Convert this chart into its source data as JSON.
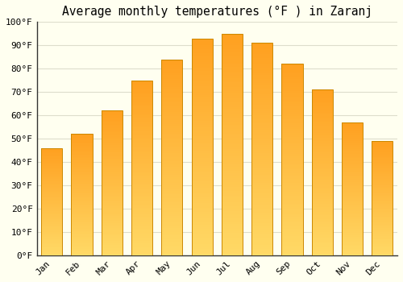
{
  "title": "Average monthly temperatures (°F ) in Zaranj",
  "months": [
    "Jan",
    "Feb",
    "Mar",
    "Apr",
    "May",
    "Jun",
    "Jul",
    "Aug",
    "Sep",
    "Oct",
    "Nov",
    "Dec"
  ],
  "values": [
    46,
    52,
    62,
    75,
    84,
    93,
    95,
    91,
    82,
    71,
    57,
    49
  ],
  "bar_color_bottom": "#FFD966",
  "bar_color_top": "#FFA020",
  "bar_edge_color": "#CC8800",
  "background_color": "#FFFFF0",
  "grid_color": "#DDDDCC",
  "ylim": [
    0,
    100
  ],
  "yticks": [
    0,
    10,
    20,
    30,
    40,
    50,
    60,
    70,
    80,
    90,
    100
  ],
  "ytick_labels": [
    "0°F",
    "10°F",
    "20°F",
    "30°F",
    "40°F",
    "50°F",
    "60°F",
    "70°F",
    "80°F",
    "90°F",
    "100°F"
  ],
  "title_fontsize": 10.5,
  "tick_fontsize": 8,
  "font_family": "monospace",
  "bar_width": 0.7,
  "n_gradient_segments": 100
}
